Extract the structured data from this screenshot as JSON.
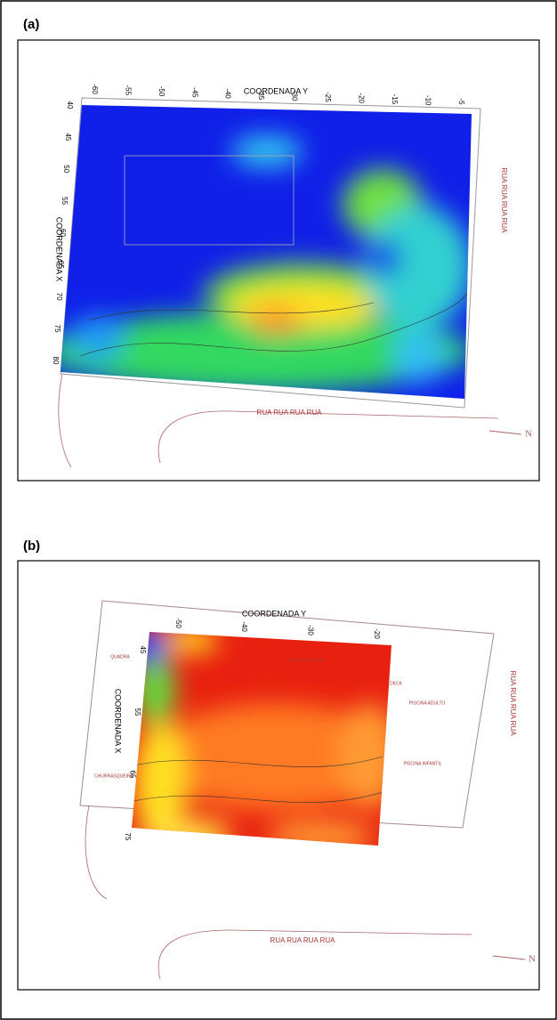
{
  "panels": [
    {
      "label": "(a)",
      "axis_y_title": "COORDENADA Y",
      "axis_x_title": "COORDENADA X",
      "top_ticks": [
        -60,
        -55,
        -50,
        -45,
        -40,
        -35,
        -30,
        -25,
        -20,
        -15,
        -10,
        -5
      ],
      "left_ticks": [
        40,
        45,
        50,
        55,
        60,
        65,
        70,
        75,
        80
      ],
      "street_right": "RUA  RUA  RUA  RUA",
      "street_bottom": "RUA  RUA  RUA  RUA",
      "north": "N"
    },
    {
      "label": "(b)",
      "axis_y_title": "COORDENADA Y",
      "axis_x_title": "COORDENADA X",
      "top_ticks": [
        -50,
        -40,
        -30,
        -20
      ],
      "left_ticks": [
        45,
        55,
        65,
        75
      ],
      "street_right": "RUA  RUA  RUA  RUA",
      "street_bottom": "RUA  RUA  RUA  RUA",
      "north": "N",
      "place_labels": [
        "PISCINA ADULTO",
        "PISCINA INFANTIL",
        "DECK",
        "CHURRASQUEIRA",
        "QUADRA",
        "ADMINISTRAÇÃO"
      ]
    }
  ]
}
